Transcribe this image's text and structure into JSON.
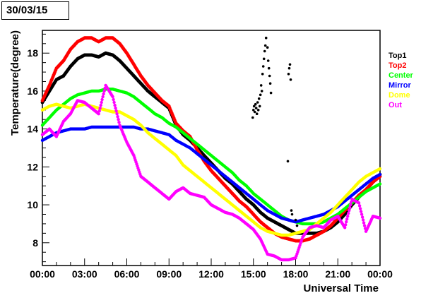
{
  "date_label": "30/03/15",
  "chart_data": {
    "type": "scatter",
    "title": "",
    "xlabel": "Universal Time",
    "ylabel": "Temperature(degree)",
    "xlim": [
      0,
      24
    ],
    "ylim": [
      6.8,
      19.2
    ],
    "x_ticks": [
      {
        "value": 0,
        "label": "00:00"
      },
      {
        "value": 3,
        "label": "03:00"
      },
      {
        "value": 6,
        "label": "06:00"
      },
      {
        "value": 9,
        "label": "09:00"
      },
      {
        "value": 12,
        "label": "12:00"
      },
      {
        "value": 15,
        "label": "15:00"
      },
      {
        "value": 18,
        "label": "18:00"
      },
      {
        "value": 21,
        "label": "21:00"
      },
      {
        "value": 24,
        "label": "00:00"
      }
    ],
    "y_ticks": [
      8,
      10,
      12,
      14,
      16,
      18
    ],
    "grid": false,
    "legend": "right",
    "series": [
      {
        "name": "Top1",
        "color": "#000000",
        "x": [
          0,
          0.5,
          1,
          1.5,
          2,
          2.5,
          3,
          3.5,
          4,
          4.5,
          5,
          5.5,
          6,
          6.5,
          7,
          7.5,
          8,
          8.5,
          9,
          9.5,
          10,
          10.5,
          11,
          11.5,
          12,
          12.5,
          13,
          13.5,
          14,
          14.5,
          15,
          15.5,
          16,
          16.5,
          17,
          17.5,
          18,
          18.5,
          19,
          19.5,
          20,
          20.5,
          21,
          21.5,
          22,
          22.5,
          23,
          23.5,
          24
        ],
        "y": [
          15.4,
          16.0,
          16.6,
          16.8,
          17.3,
          17.7,
          17.9,
          17.9,
          17.8,
          18.0,
          17.9,
          17.6,
          17.2,
          16.8,
          16.4,
          16.0,
          15.7,
          15.4,
          15.1,
          14.2,
          13.7,
          13.4,
          13.0,
          12.6,
          12.2,
          11.8,
          11.4,
          11.1,
          10.7,
          10.3,
          10.0,
          9.6,
          9.3,
          9.1,
          8.9,
          8.7,
          8.5,
          8.5,
          8.5,
          8.5,
          8.6,
          8.8,
          9.1,
          9.5,
          10.0,
          10.4,
          10.8,
          11.2,
          11.6
        ]
      },
      {
        "name": "Top2",
        "color": "#ff0000",
        "x": [
          0,
          0.5,
          1,
          1.5,
          2,
          2.5,
          3,
          3.5,
          4,
          4.5,
          5,
          5.5,
          6,
          6.5,
          7,
          7.5,
          8,
          8.5,
          9,
          9.5,
          10,
          10.5,
          11,
          11.5,
          12,
          12.5,
          13,
          13.5,
          14,
          14.5,
          15,
          15.5,
          16,
          16.5,
          17,
          17.5,
          18,
          18.5,
          19,
          19.5,
          20,
          20.5,
          21,
          21.5,
          22,
          22.5,
          23,
          23.5,
          24
        ],
        "y": [
          15.5,
          16.3,
          17.2,
          17.6,
          18.2,
          18.6,
          18.8,
          18.8,
          18.6,
          18.8,
          18.8,
          18.5,
          18.0,
          17.4,
          16.8,
          16.3,
          15.9,
          15.5,
          15.2,
          14.3,
          13.9,
          13.6,
          12.9,
          12.3,
          11.8,
          11.4,
          11.0,
          10.6,
          10.2,
          9.9,
          9.5,
          9.1,
          8.8,
          8.5,
          8.3,
          8.2,
          8.1,
          8.1,
          8.2,
          8.4,
          8.6,
          8.9,
          9.3,
          9.7,
          10.1,
          10.5,
          10.8,
          11.2,
          11.5
        ]
      },
      {
        "name": "Center",
        "color": "#00ff00",
        "x": [
          0,
          0.5,
          1,
          1.5,
          2,
          2.5,
          3,
          3.5,
          4,
          4.5,
          5,
          5.5,
          6,
          6.5,
          7,
          7.5,
          8,
          8.5,
          9,
          9.5,
          10,
          10.5,
          11,
          11.5,
          12,
          12.5,
          13,
          13.5,
          14,
          14.5,
          15,
          15.5,
          16,
          16.5,
          17,
          17.5,
          18,
          18.5,
          19,
          19.5,
          20,
          20.5,
          21,
          21.5,
          22,
          22.5,
          23,
          23.5,
          24
        ],
        "y": [
          14.2,
          14.6,
          15.0,
          15.3,
          15.6,
          15.8,
          15.9,
          16.0,
          16.0,
          16.1,
          16.1,
          16.0,
          15.9,
          15.7,
          15.4,
          15.1,
          14.8,
          14.6,
          14.3,
          14.1,
          13.8,
          13.5,
          13.2,
          12.9,
          12.6,
          12.3,
          12.0,
          11.7,
          11.3,
          11.0,
          10.6,
          10.3,
          10.0,
          9.7,
          9.4,
          9.2,
          9.1,
          9.0,
          9.0,
          9.0,
          9.1,
          9.3,
          9.5,
          9.8,
          10.1,
          10.4,
          10.7,
          10.9,
          11.1
        ]
      },
      {
        "name": "Mirror",
        "color": "#0000ff",
        "x": [
          0,
          0.5,
          1,
          1.5,
          2,
          2.5,
          3,
          3.5,
          4,
          4.5,
          5,
          5.5,
          6,
          6.5,
          7,
          7.5,
          8,
          8.5,
          9,
          9.5,
          10,
          10.5,
          11,
          11.5,
          12,
          12.5,
          13,
          13.5,
          14,
          14.5,
          15,
          15.5,
          16,
          16.5,
          17,
          17.5,
          18,
          18.5,
          19,
          19.5,
          20,
          20.5,
          21,
          21.5,
          22,
          22.5,
          23,
          23.5,
          24
        ],
        "y": [
          13.4,
          13.6,
          13.8,
          13.9,
          14.0,
          14.0,
          14.0,
          14.1,
          14.1,
          14.1,
          14.1,
          14.1,
          14.1,
          14.1,
          14.0,
          14.0,
          13.9,
          13.8,
          13.7,
          13.4,
          13.2,
          13.0,
          12.7,
          12.4,
          12.1,
          11.8,
          11.5,
          11.2,
          10.9,
          10.6,
          10.3,
          10.0,
          9.7,
          9.5,
          9.3,
          9.2,
          9.1,
          9.2,
          9.3,
          9.4,
          9.5,
          9.7,
          9.9,
          10.2,
          10.5,
          10.8,
          11.1,
          11.4,
          11.6
        ]
      },
      {
        "name": "Dome",
        "color": "#ffff00",
        "x": [
          0,
          0.5,
          1,
          1.5,
          2,
          2.5,
          3,
          3.5,
          4,
          4.5,
          5,
          5.5,
          6,
          6.5,
          7,
          7.5,
          8,
          8.5,
          9,
          9.5,
          10,
          10.5,
          11,
          11.5,
          12,
          12.5,
          13,
          13.5,
          14,
          14.5,
          15,
          15.5,
          16,
          16.5,
          17,
          17.5,
          18,
          18.5,
          19,
          19.5,
          20,
          20.5,
          21,
          21.5,
          22,
          22.5,
          23,
          23.5,
          24
        ],
        "y": [
          15.0,
          15.2,
          15.3,
          15.2,
          15.1,
          15.2,
          15.3,
          15.2,
          15.1,
          15.0,
          14.9,
          14.9,
          14.7,
          14.5,
          14.2,
          13.8,
          13.5,
          13.2,
          12.9,
          12.6,
          12.1,
          11.8,
          11.5,
          11.2,
          10.9,
          10.6,
          10.3,
          10.0,
          9.7,
          9.4,
          9.1,
          8.8,
          8.6,
          8.5,
          8.4,
          8.4,
          8.5,
          8.6,
          8.7,
          9.0,
          9.3,
          9.6,
          10.0,
          10.4,
          10.8,
          11.2,
          11.5,
          11.7,
          11.9
        ]
      },
      {
        "name": "Out",
        "color": "#ff00ff",
        "x": [
          0,
          0.5,
          1,
          1.5,
          2,
          2.5,
          3,
          3.5,
          4,
          4.5,
          5,
          5.5,
          6,
          6.5,
          7,
          7.5,
          8,
          8.5,
          9,
          9.5,
          10,
          10.5,
          11,
          11.5,
          12,
          12.5,
          13,
          13.5,
          14,
          14.5,
          15,
          15.5,
          16,
          16.5,
          17,
          17.5,
          18,
          18.5,
          19,
          19.5,
          20,
          20.5,
          21,
          21.5,
          22,
          22.5,
          23,
          23.5,
          24
        ],
        "y": [
          13.7,
          14.0,
          13.6,
          14.4,
          14.8,
          15.5,
          15.4,
          15.1,
          14.8,
          16.3,
          15.7,
          14.2,
          13.3,
          12.6,
          11.5,
          11.2,
          10.9,
          10.6,
          10.3,
          10.7,
          10.9,
          10.6,
          10.5,
          10.4,
          10.0,
          9.8,
          9.6,
          9.5,
          9.3,
          9.0,
          8.7,
          8.2,
          7.4,
          7.3,
          7.1,
          7.1,
          7.2,
          8.3,
          8.8,
          8.9,
          8.8,
          9.2,
          9.4,
          8.8,
          10.3,
          10.1,
          8.6,
          9.4,
          9.3
        ]
      }
    ],
    "extra_points": {
      "series": "Top1",
      "x": [
        14.95,
        15.0,
        15.05,
        15.1,
        15.15,
        15.2,
        15.25,
        15.3,
        15.35,
        15.4,
        15.45,
        15.5,
        15.55,
        15.6,
        15.65,
        15.7,
        15.75,
        15.8,
        15.85,
        15.9,
        16.0,
        16.05,
        16.1,
        16.15,
        16.2,
        16.25,
        17.45,
        17.5,
        17.55,
        17.6,
        17.65,
        17.7,
        17.75,
        18.0,
        18.1
      ],
      "y": [
        14.6,
        15.0,
        15.2,
        14.9,
        15.3,
        15.1,
        14.8,
        15.4,
        15.0,
        15.6,
        15.2,
        15.8,
        16.3,
        16.0,
        16.9,
        17.3,
        17.7,
        18.1,
        18.4,
        18.8,
        18.3,
        17.6,
        17.2,
        16.8,
        16.4,
        15.9,
        12.3,
        16.9,
        17.2,
        17.4,
        16.6,
        9.7,
        9.5,
        9.2,
        8.9
      ]
    }
  }
}
